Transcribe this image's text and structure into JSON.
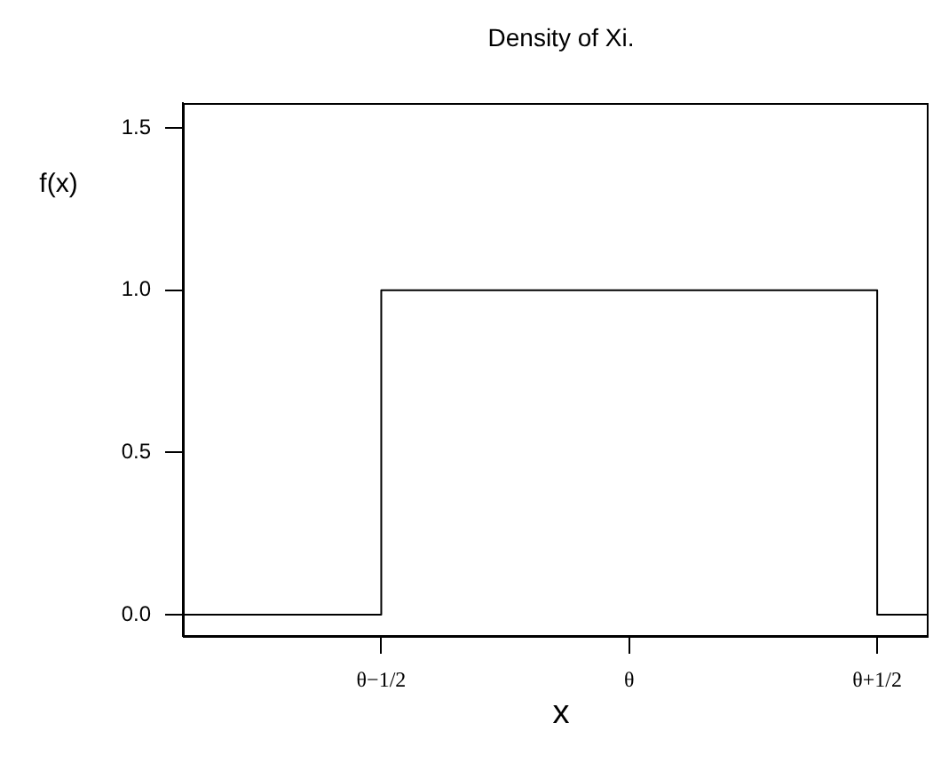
{
  "chart_data": {
    "type": "step",
    "title": "Density of Xi.",
    "xlabel": "x",
    "ylabel": "f(x)",
    "categories": [
      null,
      null,
      null,
      null,
      "θ−1/2",
      null,
      null,
      null,
      null,
      "θ",
      null,
      null,
      null,
      null,
      "θ+1/2",
      null
    ],
    "series": [
      {
        "color": "#000000",
        "values": [
          0,
          0,
          0,
          0,
          1,
          1,
          1,
          1,
          1,
          1,
          1,
          1,
          1,
          1,
          0,
          0
        ]
      }
    ],
    "ylim": [
      -0.066,
      1.577
    ],
    "yticks": [
      {
        "value": 0,
        "label": "0.0"
      },
      {
        "value": 0.5,
        "label": "0.5"
      },
      {
        "value": 1,
        "label": "1.0"
      },
      {
        "value": 1.5,
        "label": "1.5"
      }
    ],
    "grid": false,
    "legend": false,
    "marker": "none",
    "line_style": "solid"
  }
}
